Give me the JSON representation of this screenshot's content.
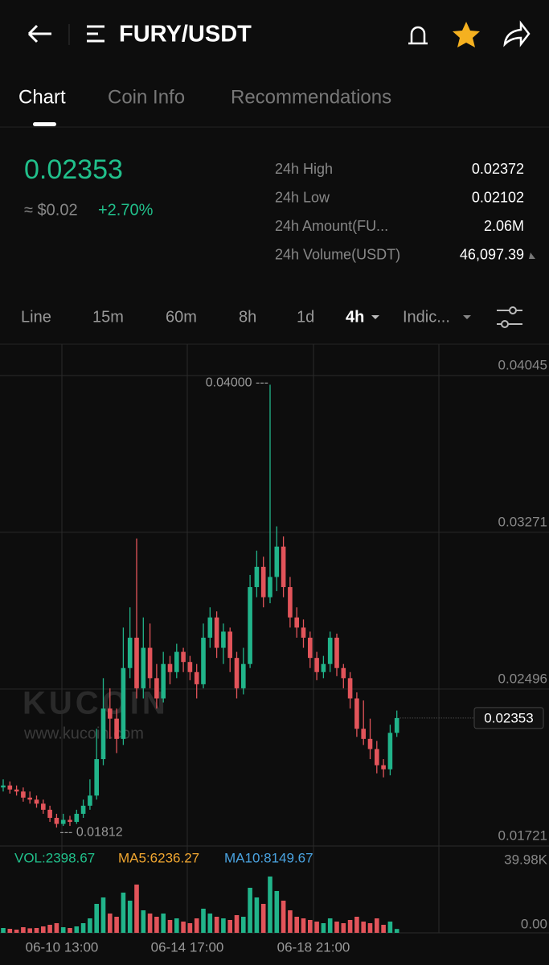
{
  "header": {
    "pair": "FURY/USDT"
  },
  "tabs": [
    "Chart",
    "Coin Info",
    "Recommendations"
  ],
  "price": {
    "last": "0.02353",
    "usd": "≈ $0.02",
    "change": "+2.70%"
  },
  "stats": [
    {
      "label": "24h High",
      "value": "0.02372"
    },
    {
      "label": "24h Low",
      "value": "0.02102"
    },
    {
      "label": "24h Amount(FU...",
      "value": "2.06M"
    },
    {
      "label": "24h Volume(USDT)",
      "value": "46,097.39"
    }
  ],
  "timeframes": [
    "Line",
    "15m",
    "60m",
    "8h",
    "1d",
    "4h",
    "Indic..."
  ],
  "chart": {
    "type": "candlestick",
    "yticks": [
      0.04045,
      0.03271,
      0.02496,
      0.01721
    ],
    "ylim": [
      0.01721,
      0.04045
    ],
    "xlabels": [
      "06-10 13:00",
      "06-14 17:00",
      "06-18 21:00"
    ],
    "high_note": "0.04000 ---",
    "low_note": "--- 0.01812",
    "last_label": "0.02353",
    "last_value": 0.02353,
    "watermark": "KUCOIN",
    "watermark_url": "www.kucoin.com",
    "candles": [
      [
        0.0201,
        0.0205,
        0.0199,
        0.0202
      ],
      [
        0.0202,
        0.0204,
        0.0198,
        0.02
      ],
      [
        0.02,
        0.0202,
        0.0197,
        0.0199
      ],
      [
        0.0199,
        0.0201,
        0.0194,
        0.0196
      ],
      [
        0.0196,
        0.0199,
        0.0193,
        0.0195
      ],
      [
        0.0195,
        0.0197,
        0.0191,
        0.0193
      ],
      [
        0.0193,
        0.0195,
        0.0188,
        0.019
      ],
      [
        0.019,
        0.0192,
        0.0184,
        0.0186
      ],
      [
        0.0186,
        0.0188,
        0.01812,
        0.0183
      ],
      [
        0.0183,
        0.0188,
        0.0182,
        0.0185
      ],
      [
        0.0185,
        0.0187,
        0.0182,
        0.0184
      ],
      [
        0.0184,
        0.019,
        0.0183,
        0.0188
      ],
      [
        0.0188,
        0.0195,
        0.0186,
        0.0192
      ],
      [
        0.0192,
        0.0205,
        0.019,
        0.0197
      ],
      [
        0.0197,
        0.023,
        0.0195,
        0.0215
      ],
      [
        0.0215,
        0.0255,
        0.0212,
        0.024
      ],
      [
        0.024,
        0.025,
        0.0225,
        0.0235
      ],
      [
        0.0235,
        0.024,
        0.0218,
        0.0225
      ],
      [
        0.0225,
        0.028,
        0.0222,
        0.026
      ],
      [
        0.026,
        0.029,
        0.0255,
        0.0275
      ],
      [
        0.0275,
        0.0324,
        0.0245,
        0.025
      ],
      [
        0.025,
        0.0285,
        0.0245,
        0.027
      ],
      [
        0.027,
        0.0282,
        0.025,
        0.0255
      ],
      [
        0.0255,
        0.0262,
        0.024,
        0.0245
      ],
      [
        0.0245,
        0.0268,
        0.0243,
        0.0262
      ],
      [
        0.0262,
        0.0266,
        0.0252,
        0.0258
      ],
      [
        0.0258,
        0.0272,
        0.0255,
        0.0268
      ],
      [
        0.0268,
        0.027,
        0.0258,
        0.0263
      ],
      [
        0.0263,
        0.0266,
        0.0254,
        0.0258
      ],
      [
        0.0258,
        0.0262,
        0.0245,
        0.0252
      ],
      [
        0.0252,
        0.0282,
        0.025,
        0.0275
      ],
      [
        0.0275,
        0.029,
        0.027,
        0.0285
      ],
      [
        0.0285,
        0.0288,
        0.0265,
        0.027
      ],
      [
        0.027,
        0.0282,
        0.0262,
        0.0278
      ],
      [
        0.0278,
        0.028,
        0.0258,
        0.0265
      ],
      [
        0.0265,
        0.0268,
        0.0245,
        0.025
      ],
      [
        0.025,
        0.027,
        0.0247,
        0.0262
      ],
      [
        0.0262,
        0.0306,
        0.026,
        0.03
      ],
      [
        0.03,
        0.0318,
        0.0295,
        0.031
      ],
      [
        0.031,
        0.0315,
        0.029,
        0.0295
      ],
      [
        0.0295,
        0.04,
        0.0292,
        0.0305
      ],
      [
        0.0305,
        0.033,
        0.0298,
        0.032
      ],
      [
        0.032,
        0.0325,
        0.0295,
        0.03
      ],
      [
        0.03,
        0.0305,
        0.028,
        0.0285
      ],
      [
        0.0285,
        0.029,
        0.0275,
        0.028
      ],
      [
        0.028,
        0.0284,
        0.027,
        0.0275
      ],
      [
        0.0275,
        0.0278,
        0.026,
        0.0265
      ],
      [
        0.0265,
        0.0268,
        0.0254,
        0.0258
      ],
      [
        0.0258,
        0.0266,
        0.0255,
        0.0262
      ],
      [
        0.0262,
        0.0278,
        0.0258,
        0.0275
      ],
      [
        0.0275,
        0.0277,
        0.0256,
        0.026
      ],
      [
        0.026,
        0.0262,
        0.025,
        0.0255
      ],
      [
        0.0255,
        0.0258,
        0.024,
        0.0245
      ],
      [
        0.0245,
        0.0248,
        0.0226,
        0.023
      ],
      [
        0.023,
        0.0244,
        0.0222,
        0.0225
      ],
      [
        0.0225,
        0.0235,
        0.0215,
        0.022
      ],
      [
        0.022,
        0.0224,
        0.0208,
        0.0212
      ],
      [
        0.0212,
        0.0215,
        0.0206,
        0.021
      ],
      [
        0.021,
        0.0232,
        0.0207,
        0.0228
      ],
      [
        0.0228,
        0.0239,
        0.0226,
        0.02353
      ]
    ],
    "volume": {
      "label": "VOL:2398.67",
      "ma5": "MA5:6236.27",
      "ma10": "MA10:8149.67",
      "ticks": [
        {
          "value": 39980,
          "label": "39.98K"
        },
        {
          "value": 0,
          "label": "0.00"
        }
      ],
      "ylim": [
        0,
        39980
      ],
      "values": [
        3000,
        2500,
        2000,
        3500,
        2800,
        3000,
        4000,
        5000,
        6000,
        3500,
        3000,
        4000,
        6000,
        9000,
        18000,
        22000,
        12000,
        10000,
        25000,
        20000,
        30000,
        14000,
        12000,
        10000,
        12000,
        8000,
        9000,
        7000,
        6000,
        9000,
        15000,
        12000,
        10000,
        9000,
        8000,
        11000,
        10000,
        28000,
        22000,
        18000,
        35000,
        26000,
        20000,
        14000,
        10000,
        9000,
        8000,
        7000,
        6000,
        9000,
        7000,
        6000,
        8000,
        10000,
        7000,
        6000,
        9000,
        5000,
        7000,
        2400
      ]
    }
  }
}
